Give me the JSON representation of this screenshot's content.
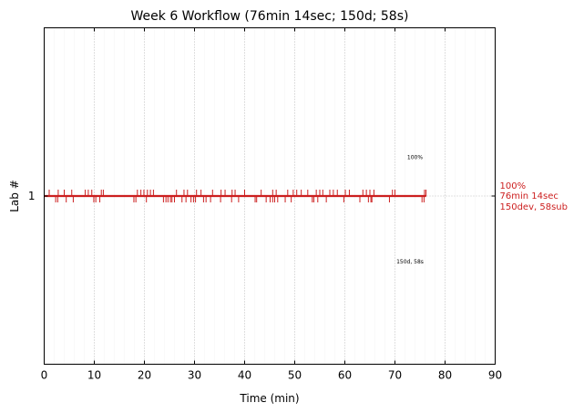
{
  "chart_data": {
    "type": "line",
    "title": "Week 6 Workflow (76min 14sec; 150d; 58s)",
    "xlabel": "Time (min)",
    "ylabel": "Lab #",
    "xlim": [
      0,
      90
    ],
    "x_ticks": [
      0,
      10,
      20,
      30,
      40,
      50,
      60,
      70,
      80,
      90
    ],
    "x_tick_labels": [
      "0",
      "10",
      "20",
      "30",
      "40",
      "50",
      "60",
      "70",
      "80",
      "90"
    ],
    "y_ticks": [
      1
    ],
    "y_tick_labels": [
      "1"
    ],
    "grid": "vertical dotted major and minor",
    "color": "#cc1f1f",
    "timeline": {
      "lab": 1,
      "start": 0,
      "end": 76.23
    },
    "dev_ticks_up": [
      1.0,
      2.8,
      4.0,
      5.5,
      8.2,
      8.8,
      9.5,
      11.4,
      11.8,
      18.6,
      19.3,
      19.9,
      20.6,
      21.2,
      21.8,
      26.4,
      27.9,
      28.6,
      30.4,
      31.3,
      33.6,
      35.3,
      36.1,
      37.5,
      38.1,
      40.0,
      43.3,
      45.6,
      46.3,
      48.6,
      49.7,
      50.4,
      51.3,
      52.6,
      54.3,
      55.0,
      55.6,
      57.0,
      57.7,
      58.5,
      60.1,
      60.9,
      63.6,
      64.3,
      65.0,
      65.8,
      69.5,
      70.0,
      75.9,
      76.2
    ],
    "dev_ticks_down": [
      2.3,
      2.7,
      4.4,
      5.8,
      9.9,
      10.3,
      11.1,
      17.9,
      18.3,
      20.4,
      23.8,
      24.3,
      24.7,
      25.2,
      25.5,
      26.0,
      27.5,
      28.3,
      29.3,
      29.8,
      30.2,
      31.8,
      32.3,
      33.2,
      35.2,
      37.4,
      38.8,
      42.1,
      42.4,
      44.3,
      45.1,
      45.6,
      46.0,
      46.6,
      48.1,
      49.3,
      53.5,
      53.8,
      54.6,
      56.3,
      59.8,
      63.0,
      64.7,
      65.2,
      65.4,
      68.9,
      75.4,
      75.8
    ],
    "annotations": {
      "percent_label": "100%",
      "percent_label_x": 74,
      "percent_label_y": 1.11,
      "counts_label": "150d, 58s",
      "counts_label_x": 73,
      "counts_label_y": 0.8
    },
    "right_summary": [
      "100%",
      "76min 14sec",
      "150dev, 58sub"
    ],
    "ref_line_y": 1
  }
}
